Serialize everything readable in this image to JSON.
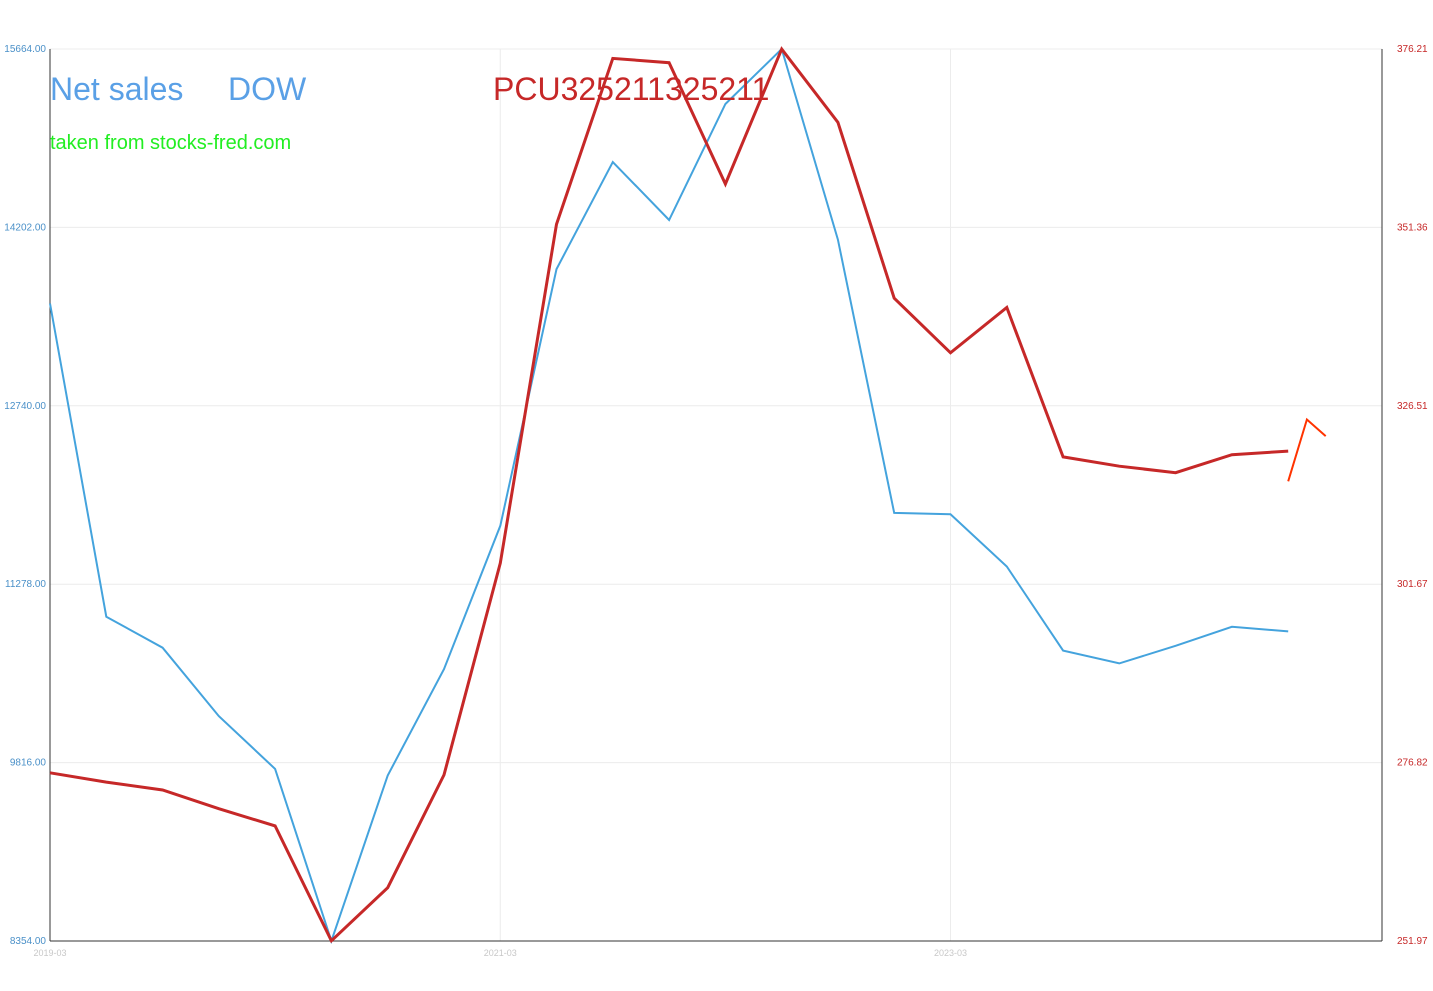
{
  "colors": {
    "left_series": "#44a3dd",
    "right_series": "#c62828",
    "extension": "#ff3300",
    "label_left": "#5aa0e6",
    "label_right": "#c62828",
    "source_text": "#22ee22",
    "grid": "#ececec",
    "axis": "#333333"
  },
  "labels": {
    "title_left": "Net sales",
    "title_dow": "DOW",
    "title_right": "PCU325211325211",
    "source": "taken from stocks-fred.com"
  },
  "chart_data": {
    "type": "line",
    "title": "",
    "x_ticks": [
      "2019-03",
      "2021-03",
      "2023-03"
    ],
    "x": [
      "2019-03",
      "2019-06",
      "2019-09",
      "2019-12",
      "2020-03",
      "2020-06",
      "2020-09",
      "2020-12",
      "2021-03",
      "2021-06",
      "2021-09",
      "2021-12",
      "2022-03",
      "2022-06",
      "2022-09",
      "2022-12",
      "2023-03",
      "2023-06",
      "2023-09",
      "2023-12",
      "2024-03",
      "2024-06",
      "2024-09"
    ],
    "left_axis": {
      "ticks": [
        "15664.00",
        "14202.00",
        "12740.00",
        "11278.00",
        "9816.00",
        "8354.00"
      ],
      "range": [
        8354,
        15664
      ]
    },
    "right_axis": {
      "ticks": [
        "376.21",
        "351.36",
        "326.51",
        "301.67",
        "276.82",
        "251.97"
      ],
      "range": [
        251.97,
        376.21
      ]
    },
    "series": [
      {
        "name": "Net sales",
        "axis": "left",
        "values": [
          13578,
          11012,
          10758,
          10197,
          9764,
          8354,
          9710,
          10582,
          11757,
          13860,
          14738,
          14263,
          15213,
          15664,
          14102,
          11862,
          11851,
          11423,
          10734,
          10629,
          10773,
          10929,
          10891
        ]
      },
      {
        "name": "PCU325211325211",
        "axis": "right",
        "values": [
          275.4,
          274.1,
          273.0,
          270.4,
          268.0,
          252.0,
          259.4,
          275.1,
          304.6,
          351.8,
          374.9,
          374.3,
          357.4,
          376.2,
          366.0,
          341.5,
          333.9,
          340.2,
          319.4,
          318.1,
          317.2,
          319.7,
          320.2
        ]
      },
      {
        "name": "",
        "axis": "right",
        "x": [
          "2024-09",
          "2024-10",
          "2024-11"
        ],
        "values": [
          316.0,
          324.6,
          322.3
        ]
      }
    ],
    "grid": true
  }
}
